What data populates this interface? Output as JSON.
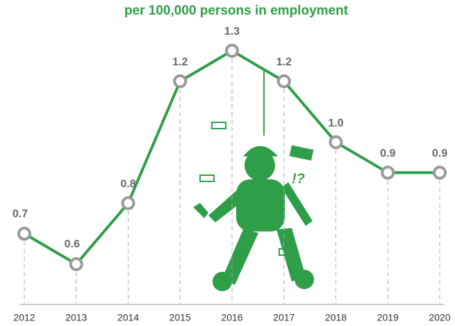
{
  "chart_data": {
    "type": "line",
    "title": "per 100,000 persons in employment",
    "categories": [
      "2012",
      "2013",
      "2014",
      "2015",
      "2016",
      "2017",
      "2018",
      "2019",
      "2020"
    ],
    "values": [
      0.7,
      0.6,
      0.8,
      1.2,
      1.3,
      1.2,
      1.0,
      0.9,
      0.9
    ],
    "value_labels": [
      "0.7",
      "0.6",
      "0.8",
      "1.2",
      "1.3",
      "1.2",
      "1.0",
      "0.9",
      "0.9"
    ],
    "color": "#2e9e48",
    "marker_color": "#999999"
  }
}
